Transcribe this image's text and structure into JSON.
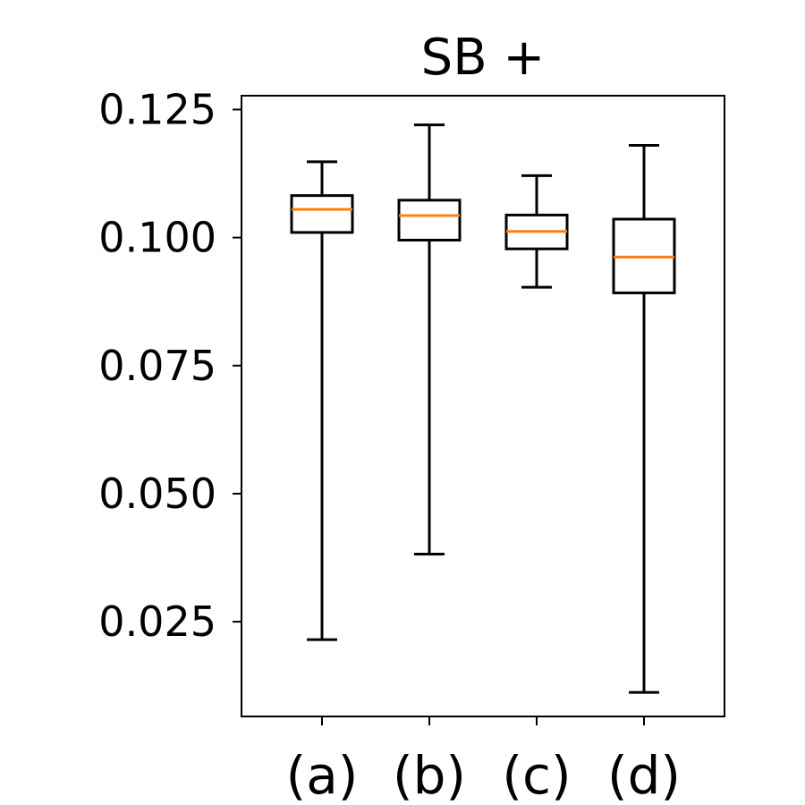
{
  "chart_data": {
    "type": "box",
    "title": "SB +",
    "xlabel": "",
    "ylabel": "",
    "categories": [
      "(a)",
      "(b)",
      "(c)",
      "(d)"
    ],
    "boxes": [
      {
        "label": "(a)",
        "whisker_low": 0.0215,
        "q1": 0.101,
        "median": 0.1055,
        "q3": 0.1082,
        "whisker_high": 0.1148
      },
      {
        "label": "(b)",
        "whisker_low": 0.0382,
        "q1": 0.0995,
        "median": 0.1043,
        "q3": 0.1073,
        "whisker_high": 0.122
      },
      {
        "label": "(c)",
        "whisker_low": 0.0903,
        "q1": 0.0978,
        "median": 0.1012,
        "q3": 0.1044,
        "whisker_high": 0.1121
      },
      {
        "label": "(d)",
        "whisker_low": 0.0112,
        "q1": 0.0892,
        "median": 0.0962,
        "q3": 0.1036,
        "whisker_high": 0.118
      }
    ],
    "yticks": [
      0.025,
      0.05,
      0.075,
      0.1,
      0.125
    ],
    "ytick_labels": [
      "0.025",
      "0.050",
      "0.075",
      "0.100",
      "0.125"
    ],
    "ylim": [
      0.0065,
      0.1277
    ],
    "grid": false,
    "colors": {
      "box": "#000000",
      "median": "#ff7f0e",
      "axis": "#000000"
    }
  }
}
